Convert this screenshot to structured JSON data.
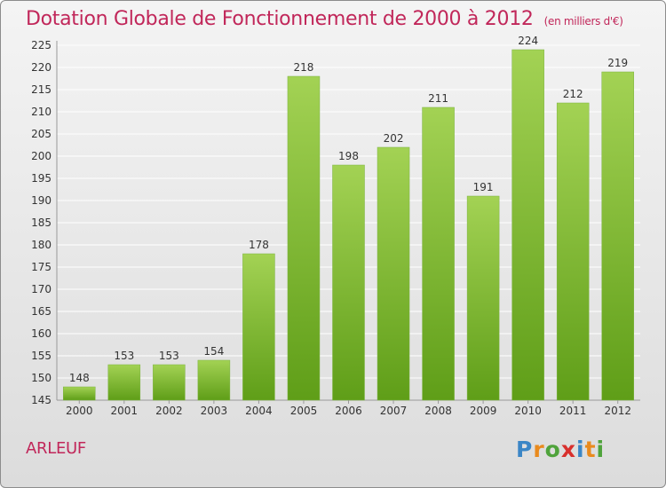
{
  "header": {
    "title": "Dotation Globale de Fonctionnement de 2000 à 2012",
    "unit": "(en milliers d'€)"
  },
  "commune": "ARLEUF",
  "logo": {
    "text": "Proxiti",
    "letter_colors": [
      "#3b86c6",
      "#e98a1d",
      "#4fa33b",
      "#d8302d",
      "#3b86c6",
      "#e98a1d",
      "#4fa33b"
    ]
  },
  "colors": {
    "bar_light": "#a3d254",
    "bar_dark": "#5f9e18",
    "title": "#c1275a",
    "grid": "#ffffff"
  },
  "chart_data": {
    "type": "bar",
    "categories": [
      "2000",
      "2001",
      "2002",
      "2003",
      "2004",
      "2005",
      "2006",
      "2007",
      "2008",
      "2009",
      "2010",
      "2011",
      "2012"
    ],
    "values": [
      148,
      153,
      153,
      154,
      178,
      218,
      198,
      202,
      211,
      191,
      224,
      212,
      219
    ],
    "ylim": [
      145,
      225
    ],
    "yticks": [
      145,
      150,
      155,
      160,
      165,
      170,
      175,
      180,
      185,
      190,
      195,
      200,
      205,
      210,
      215,
      220,
      225
    ],
    "grid": true,
    "data_labels": true
  }
}
